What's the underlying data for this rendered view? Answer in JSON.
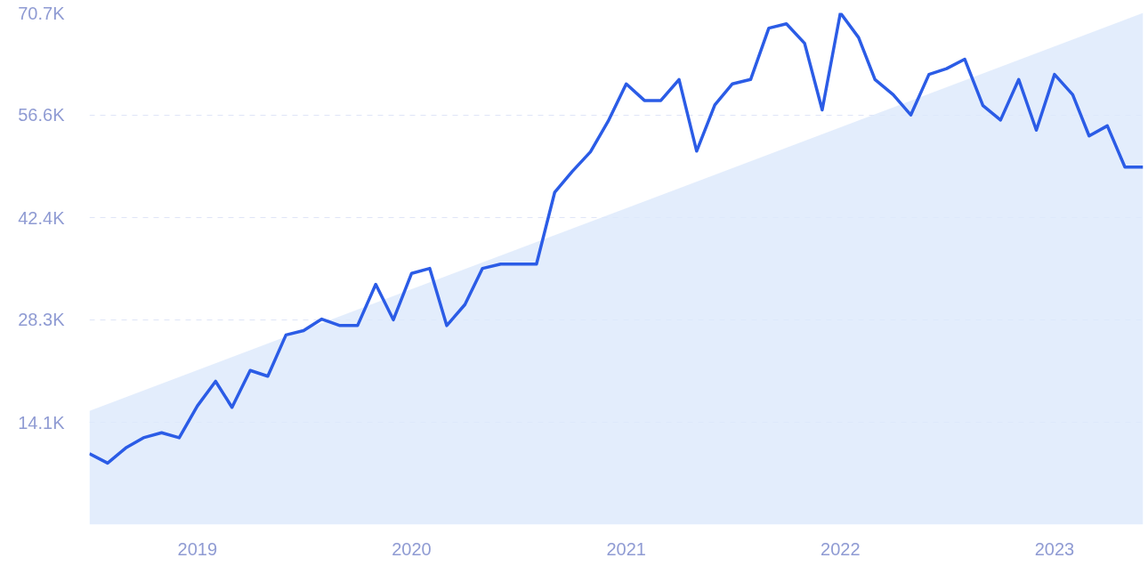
{
  "chart_data": {
    "type": "line",
    "xlim": [
      "2018-07",
      "2023-06"
    ],
    "ylim": [
      0,
      70.7
    ],
    "xticks": [
      {
        "value": "2019-01",
        "label": "2019"
      },
      {
        "value": "2020-01",
        "label": "2020"
      },
      {
        "value": "2021-01",
        "label": "2021"
      },
      {
        "value": "2022-01",
        "label": "2022"
      },
      {
        "value": "2023-01",
        "label": "2023"
      }
    ],
    "yticks": [
      {
        "value": 14.1,
        "label": "14.1K"
      },
      {
        "value": 28.3,
        "label": "28.3K"
      },
      {
        "value": 42.4,
        "label": "42.4K"
      },
      {
        "value": 56.6,
        "label": "56.6K"
      },
      {
        "value": 70.7,
        "label": "70.7K"
      }
    ],
    "grid": "y",
    "series": [
      {
        "type": "area",
        "color": "#dce9fb",
        "x": [
          "2018-07",
          "2023-06"
        ],
        "values": [
          15.7,
          70.7
        ]
      },
      {
        "color": "#2b5ce6",
        "line_style": "solid",
        "x": [
          "2018-07",
          "2018-08",
          "2018-09",
          "2018-10",
          "2018-11",
          "2018-12",
          "2019-01",
          "2019-02",
          "2019-03",
          "2019-04",
          "2019-05",
          "2019-06",
          "2019-07",
          "2019-08",
          "2019-09",
          "2019-10",
          "2019-11",
          "2019-12",
          "2020-01",
          "2020-02",
          "2020-03",
          "2020-04",
          "2020-05",
          "2020-06",
          "2020-07",
          "2020-08",
          "2020-09",
          "2020-10",
          "2020-11",
          "2020-12",
          "2021-01",
          "2021-02",
          "2021-03",
          "2021-04",
          "2021-05",
          "2021-06",
          "2021-07",
          "2021-08",
          "2021-09",
          "2021-10",
          "2021-11",
          "2021-12",
          "2022-01",
          "2022-02",
          "2022-03",
          "2022-04",
          "2022-05",
          "2022-06",
          "2022-07",
          "2022-08",
          "2022-09",
          "2022-10",
          "2022-11",
          "2022-12",
          "2023-01",
          "2023-02",
          "2023-03",
          "2023-04",
          "2023-05",
          "2023-06"
        ],
        "values": [
          9.8,
          8.5,
          10.6,
          12.0,
          12.7,
          12.0,
          16.4,
          19.8,
          16.2,
          21.3,
          20.5,
          26.2,
          26.8,
          28.4,
          27.5,
          27.5,
          33.2,
          28.3,
          34.7,
          35.4,
          27.5,
          30.4,
          35.4,
          36.0,
          36.0,
          36.0,
          45.9,
          48.8,
          51.5,
          55.7,
          60.9,
          58.6,
          58.6,
          61.5,
          51.6,
          58.0,
          60.9,
          61.5,
          68.6,
          69.2,
          66.5,
          57.3,
          70.7,
          67.3,
          61.5,
          59.4,
          56.6,
          62.2,
          63.0,
          64.3,
          57.9,
          55.9,
          61.5,
          54.5,
          62.2,
          59.4,
          53.7,
          55.1,
          49.4,
          49.4
        ]
      }
    ]
  }
}
